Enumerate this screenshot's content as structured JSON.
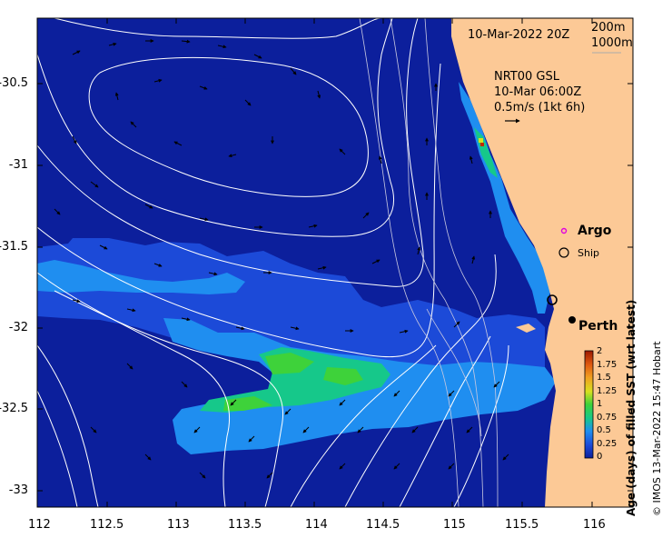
{
  "map": {
    "timestamp": "10-Mar-2022 20Z",
    "depth_labels": [
      "200m",
      "1000m"
    ],
    "current_source": "NRT00 GSL",
    "current_time": "10-Mar 06:00Z",
    "current_scale": "0.5m/s (1kt 6h)",
    "legend_argo": "Argo",
    "legend_ship": "Ship",
    "city": "Perth",
    "credit": "© IMOS 13-Mar-2022 15:47 Hobart",
    "colorbar_title": "Age (days) of filled SST (wrt latest)",
    "colorbar_ticks": [
      "2",
      "1.75",
      "1.5",
      "1.25",
      "1",
      "0.75",
      "0.5",
      "0.25",
      "0"
    ],
    "lon_ticks": [
      "112",
      "112.5",
      "113",
      "113.5",
      "114",
      "114.5",
      "115",
      "115.5",
      "116"
    ],
    "lat_ticks": [
      "-30.5",
      "-31",
      "-31.5",
      "-32",
      "-32.5",
      "-33"
    ],
    "colors": {
      "ocean": "#0c1f9c",
      "land": "#fcc996",
      "age_0_25": "#1c4ad8",
      "age_0_5": "#1f8ef0",
      "age_0_75": "#16c88a",
      "age_1": "#3ed23a",
      "age_2": "#c02a00"
    }
  }
}
